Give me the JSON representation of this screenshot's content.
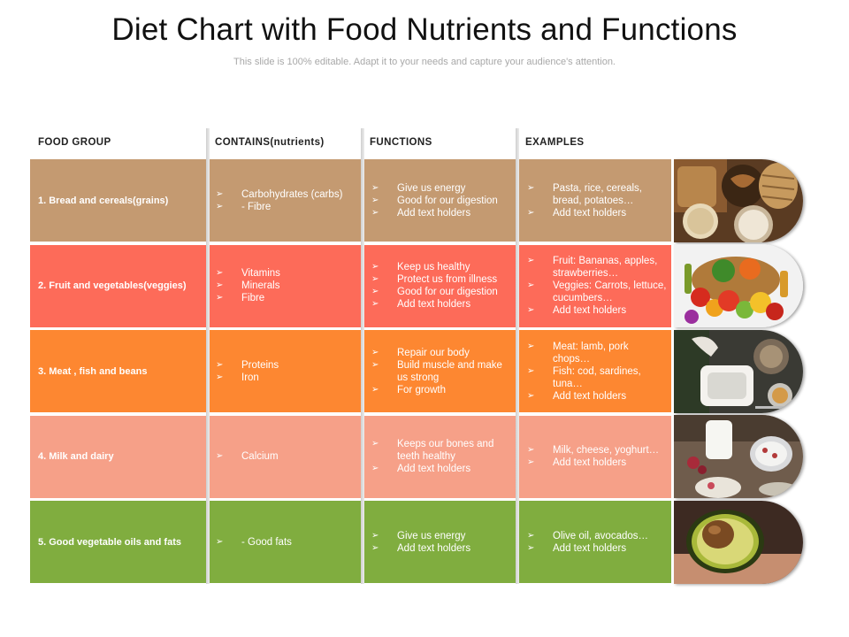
{
  "title": "Diet Chart with Food Nutrients and Functions",
  "subtitle": "This slide is 100% editable. Adapt it to your needs and capture your audience's attention.",
  "headers": {
    "group": "FOOD  GROUP",
    "nutrients": "CONTAINS(nutrients)",
    "functions": "FUNCTIONS",
    "examples": "EXAMPLES"
  },
  "bullet": "➢",
  "rows": [
    {
      "color": "#c49a71",
      "group": "1. Bread and cereals(grains)",
      "nutrients": [
        "Carbohydrates (carbs)",
        "-        Fibre"
      ],
      "functions": [
        "Give us energy",
        "Good for our digestion",
        "Add text holders"
      ],
      "examples": [
        "Pasta, rice, cereals, bread, potatoes…",
        "Add text holders"
      ],
      "image": "bread-grains-photo"
    },
    {
      "color": "#fd6b59",
      "group": "2. Fruit  and vegetables(veggies)",
      "nutrients": [
        "Vitamins",
        "Minerals",
        "Fibre"
      ],
      "functions": [
        "Keep us healthy",
        "Protect us from illness",
        "Good for our digestion",
        "Add text holders"
      ],
      "examples": [
        "Fruit: Bananas, apples, strawberries…",
        "Veggies: Carrots, lettuce, cucumbers…",
        "Add text holders"
      ],
      "image": "fruit-vegetables-photo"
    },
    {
      "color": "#fd8731",
      "group": "3. Meat , fish and beans",
      "nutrients": [
        "Proteins",
        "Iron"
      ],
      "functions": [
        "Repair our body",
        "Build muscle and make us strong",
        "For growth"
      ],
      "examples": [
        "Meat: lamb, pork chops…",
        "Fish: cod, sardines, tuna…",
        "Add text holders"
      ],
      "image": "meat-fish-photo"
    },
    {
      "color": "#f6a088",
      "group": "4. Milk and dairy",
      "nutrients": [
        "Calcium"
      ],
      "functions": [
        "Keeps our bones and teeth healthy",
        "Add text holders"
      ],
      "examples": [
        "Milk, cheese, yoghurt…",
        "Add text holders"
      ],
      "image": "milk-dairy-photo"
    },
    {
      "color": "#80ad3f",
      "group": "5. Good  vegetable oils and fats",
      "nutrients": [
        "- Good fats"
      ],
      "functions": [
        "Give us energy",
        "Add text holders"
      ],
      "examples": [
        "Olive oil, avocados…",
        "Add text holders"
      ],
      "image": "avocado-photo"
    }
  ]
}
